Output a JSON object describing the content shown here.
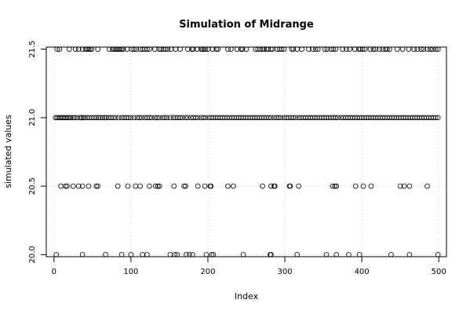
{
  "chart_data": {
    "type": "scatter",
    "title": "Simulation of Midrange",
    "xlabel": "Index",
    "ylabel": "simulated values",
    "xlim": [
      -10,
      510
    ],
    "ylim": [
      19.985,
      21.515
    ],
    "xticks": [
      0,
      100,
      200,
      300,
      400,
      500
    ],
    "xtick_labels": [
      "0",
      "100",
      "200",
      "300",
      "400",
      "500"
    ],
    "yticks": [
      20.0,
      20.5,
      21.0,
      21.5
    ],
    "ytick_labels": [
      "20.0",
      "20.5",
      "21.0",
      "21.5"
    ],
    "grid": true,
    "series": [
      {
        "levels": [
          20.0,
          20.5,
          21.0,
          21.5
        ],
        "points_by_level": {
          "20.0": [
            3,
            37,
            67,
            88,
            100,
            115,
            121,
            151,
            157,
            160,
            172,
            176,
            180,
            198,
            205,
            207,
            246,
            281,
            282,
            316,
            354,
            367,
            383,
            397,
            438,
            462,
            499
          ],
          "20.5": [
            9,
            15,
            17,
            25,
            32,
            37,
            45,
            55,
            57,
            83,
            96,
            106,
            112,
            124,
            132,
            135,
            137,
            156,
            169,
            171,
            187,
            196,
            203,
            204,
            226,
            233,
            271,
            282,
            286,
            287,
            306,
            307,
            318,
            362,
            365,
            367,
            392,
            402,
            412,
            450,
            455,
            462,
            485
          ],
          "21.0": [
            2,
            4,
            6,
            8,
            10,
            12,
            14,
            16,
            18,
            20,
            22,
            25,
            27,
            30,
            34,
            36,
            38,
            40,
            43,
            46,
            49,
            52,
            55,
            58,
            60,
            63,
            66,
            68,
            71,
            74,
            77,
            80,
            84,
            88,
            91,
            94,
            97,
            100,
            104,
            108,
            111,
            114,
            118,
            121,
            124,
            127,
            131,
            134,
            137,
            141,
            144,
            147,
            151,
            155,
            158,
            161,
            164,
            167,
            171,
            174,
            178,
            181,
            184,
            187,
            191,
            194,
            197,
            201,
            204,
            207,
            210,
            213,
            216,
            219,
            222,
            225,
            228,
            231,
            234,
            237,
            240,
            243,
            246,
            249,
            252,
            255,
            258,
            261,
            264,
            267,
            270,
            273,
            276,
            279,
            282,
            286,
            289,
            292,
            295,
            299,
            302,
            305,
            308,
            311,
            314,
            318,
            321,
            324,
            327,
            330,
            333,
            336,
            339,
            342,
            345,
            348,
            351,
            354,
            357,
            360,
            363,
            366,
            369,
            373,
            376,
            379,
            382,
            385,
            388,
            391,
            394,
            397,
            400,
            403,
            406,
            409,
            412,
            415,
            418,
            421,
            424,
            427,
            430,
            433,
            436,
            439,
            442,
            445,
            448,
            451,
            454,
            457,
            460,
            463,
            466,
            469,
            472,
            475,
            478,
            481,
            484,
            487,
            490,
            493,
            496,
            499
          ],
          "21.5": [
            4,
            7,
            20,
            28,
            32,
            37,
            41,
            43,
            45,
            47,
            49,
            57,
            72,
            76,
            78,
            80,
            82,
            84,
            86,
            88,
            90,
            95,
            101,
            104,
            107,
            112,
            115,
            118,
            121,
            124,
            131,
            137,
            139,
            142,
            145,
            148,
            152,
            158,
            164,
            174,
            179,
            181,
            186,
            191,
            193,
            195,
            197,
            200,
            206,
            211,
            213,
            226,
            230,
            238,
            243,
            245,
            250,
            262,
            265,
            268,
            271,
            273,
            276,
            278,
            282,
            284,
            290,
            293,
            296,
            299,
            309,
            311,
            316,
            322,
            331,
            336,
            340,
            343,
            352,
            355,
            360,
            363,
            366,
            375,
            380,
            384,
            391,
            396,
            398,
            401,
            404,
            411,
            415,
            418,
            423,
            427,
            431,
            433,
            436,
            446,
            453,
            461,
            468,
            472,
            477,
            480,
            485,
            489,
            492,
            496,
            499
          ]
        }
      }
    ]
  }
}
